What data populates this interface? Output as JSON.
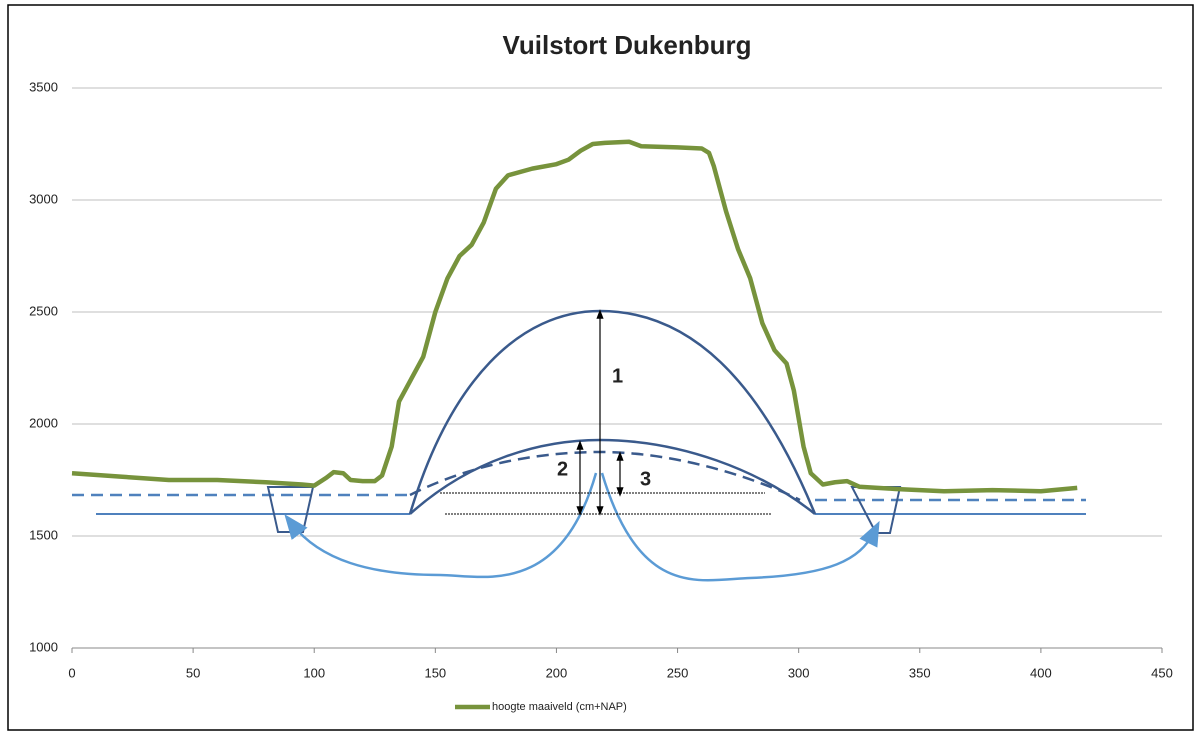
{
  "chart_data": {
    "type": "line",
    "title": "Vuilstort Dukenburg",
    "annotations": [
      "1",
      "2",
      "3"
    ],
    "series": [
      {
        "name": "hoogte maaiveld (cm+NAP)",
        "color": "#77933c",
        "x": [
          0,
          20,
          40,
          60,
          80,
          95,
          100,
          105,
          108,
          112,
          115,
          120,
          125,
          128,
          132,
          135,
          140,
          145,
          150,
          155,
          160,
          165,
          170,
          175,
          180,
          190,
          200,
          205,
          210,
          215,
          220,
          230,
          235,
          250,
          260,
          263,
          265,
          270,
          275,
          280,
          285,
          290,
          295,
          298,
          302,
          305,
          310,
          315,
          320,
          325,
          340,
          360,
          380,
          400,
          415
        ],
        "values": [
          1780,
          1765,
          1750,
          1750,
          1740,
          1730,
          1725,
          1760,
          1785,
          1780,
          1750,
          1745,
          1745,
          1770,
          1900,
          2100,
          2200,
          2300,
          2500,
          2650,
          2750,
          2800,
          2900,
          3050,
          3110,
          3140,
          3160,
          3180,
          3220,
          3250,
          3255,
          3260,
          3240,
          3235,
          3230,
          3210,
          3150,
          2950,
          2780,
          2650,
          2450,
          2330,
          2270,
          2150,
          1900,
          1780,
          1730,
          1740,
          1745,
          1720,
          1710,
          1700,
          1705,
          1700,
          1715
        ]
      }
    ],
    "xlim": [
      0,
      450
    ],
    "xticks": [
      0,
      50,
      100,
      150,
      200,
      250,
      300,
      350,
      400,
      450
    ],
    "ylim": [
      1000,
      3500
    ],
    "yticks": [
      1000,
      1500,
      2000,
      2500,
      3000,
      3500
    ],
    "grid": true,
    "legend": "bottom"
  }
}
